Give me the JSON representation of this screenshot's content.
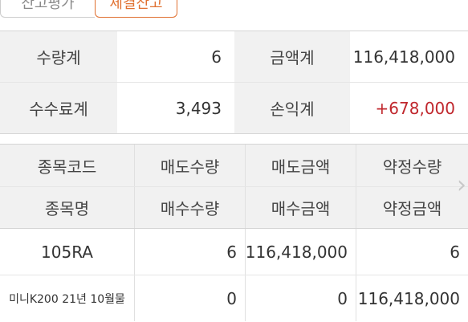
{
  "tabs": [
    {
      "label": "잔고평가"
    },
    {
      "label": "체결잔고"
    }
  ],
  "summary": {
    "qty_label": "수량계",
    "qty_value": "6",
    "amount_label": "금액계",
    "amount_value": "116,418,000",
    "fee_label": "수수료계",
    "fee_value": "3,493",
    "pnl_label": "손익계",
    "pnl_value": "+678,000"
  },
  "grid": {
    "header_row1": [
      "종목코드",
      "매도수량",
      "매도금액",
      "약정수량"
    ],
    "header_row2": [
      "종목명",
      "매수수량",
      "매수금액",
      "약정금액"
    ],
    "rows": [
      {
        "code": "105RA",
        "sell_qty": "6",
        "sell_amount": "116,418,000",
        "contract_qty": "6",
        "name": "미니K200 21년 10월물",
        "buy_qty": "0",
        "buy_amount": "0",
        "contract_amount": "116,418,000"
      }
    ]
  },
  "colors": {
    "accent": "#e07030",
    "profit": "#c0272d",
    "header_bg": "#f1f1f1"
  },
  "icons": {
    "next": "chevron-right-icon"
  }
}
